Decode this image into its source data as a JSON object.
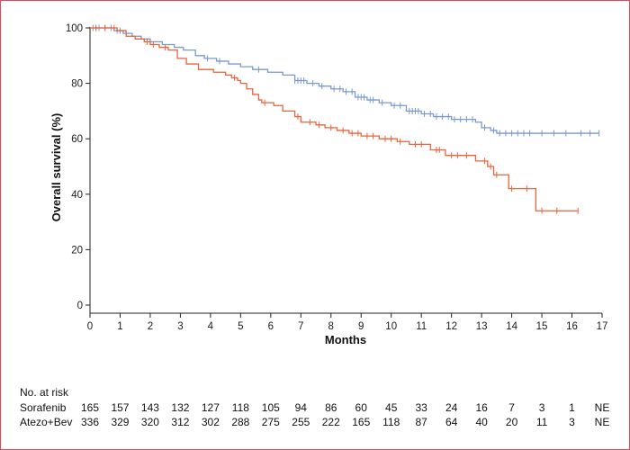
{
  "colors": {
    "sorafenib": "#7a98cf",
    "atezo": "#e8643a",
    "axis": "#222222",
    "frame": "#d94a5a"
  },
  "chart_data": {
    "type": "line",
    "chart_subtype": "kaplan-meier",
    "xlabel": "Months",
    "ylabel": "Overall survival (%)",
    "xlim": [
      0,
      17
    ],
    "ylim": [
      0,
      100
    ],
    "xticks": [
      0,
      1,
      2,
      3,
      4,
      5,
      6,
      7,
      8,
      9,
      10,
      11,
      12,
      13,
      14,
      15,
      16,
      17
    ],
    "yticks": [
      0,
      20,
      40,
      60,
      80,
      100
    ],
    "grid": false,
    "legend": "none",
    "series": [
      {
        "name": "Sorafenib",
        "color": "#7a98cf",
        "step": {
          "x": [
            0,
            0.8,
            1.1,
            1.4,
            1.7,
            2.0,
            2.4,
            2.8,
            3.1,
            3.5,
            3.8,
            4.2,
            4.6,
            5.0,
            5.4,
            5.9,
            6.4,
            6.8,
            7.2,
            7.6,
            8.0,
            8.4,
            8.8,
            9.2,
            9.6,
            10.0,
            10.5,
            11.0,
            11.4,
            12.0,
            12.8,
            13.0,
            13.3,
            13.5,
            16.9
          ],
          "y": [
            100,
            99,
            98,
            97,
            96,
            95,
            94,
            93,
            92,
            90,
            89,
            88,
            87,
            86,
            85,
            84,
            83,
            81,
            80,
            79,
            78,
            77,
            75,
            74,
            73,
            72,
            70,
            69,
            68,
            67,
            66,
            64,
            63,
            62,
            62
          ]
        },
        "censor_times": [
          0.1,
          0.2,
          0.3,
          0.5,
          0.7,
          0.9,
          1.0,
          3.9,
          4.3,
          5.6,
          6.8,
          6.9,
          7.0,
          7.1,
          7.4,
          7.7,
          8.1,
          8.3,
          8.5,
          8.7,
          8.9,
          9.0,
          9.1,
          9.3,
          9.4,
          9.7,
          10.1,
          10.3,
          10.6,
          10.7,
          10.8,
          10.9,
          11.1,
          11.3,
          11.5,
          11.7,
          11.9,
          12.1,
          12.3,
          12.5,
          12.7,
          13.1,
          13.4,
          13.6,
          13.8,
          14.0,
          14.2,
          14.4,
          14.6,
          15.0,
          15.4,
          15.8,
          16.3,
          16.6,
          16.9
        ]
      },
      {
        "name": "Atezo+Bev",
        "color": "#e8643a",
        "step": {
          "x": [
            0,
            0.9,
            1.2,
            1.5,
            1.8,
            2.0,
            2.3,
            2.6,
            2.9,
            3.2,
            3.6,
            4.1,
            4.5,
            4.7,
            4.9,
            5.0,
            5.2,
            5.4,
            5.6,
            5.7,
            6.1,
            6.4,
            6.8,
            7.0,
            7.5,
            7.8,
            8.2,
            8.6,
            9.0,
            9.6,
            10.2,
            10.6,
            11.3,
            11.8,
            12.8,
            13.2,
            13.4,
            13.9,
            14.8,
            16.2
          ],
          "y": [
            100,
            99,
            97,
            96,
            95,
            94,
            93,
            92,
            89,
            87,
            85,
            84,
            83,
            82,
            81,
            80,
            78,
            76,
            74,
            73,
            72,
            70,
            68,
            66,
            65,
            64,
            63,
            62,
            61,
            60,
            59,
            58,
            56,
            54,
            52,
            50,
            47,
            42,
            34,
            34
          ]
        },
        "censor_times": [
          0.2,
          0.5,
          0.8,
          1.9,
          2.1,
          2.5,
          4.8,
          5.8,
          6.9,
          7.3,
          7.6,
          8.0,
          8.4,
          8.7,
          8.9,
          9.2,
          9.4,
          9.8,
          10.0,
          10.3,
          10.8,
          11.0,
          11.5,
          11.6,
          12.0,
          12.2,
          12.5,
          13.1,
          13.3,
          13.5,
          14.0,
          14.5,
          15.0,
          15.5,
          16.2
        ]
      }
    ]
  },
  "risk_table": {
    "heading": "No. at risk",
    "times": [
      0,
      1,
      2,
      3,
      4,
      5,
      6,
      7,
      8,
      9,
      10,
      11,
      12,
      13,
      14,
      15,
      16,
      17
    ],
    "rows": [
      {
        "label": "Sorafenib",
        "counts": [
          "165",
          "157",
          "143",
          "132",
          "127",
          "118",
          "105",
          "94",
          "86",
          "60",
          "45",
          "33",
          "24",
          "16",
          "7",
          "3",
          "1",
          "NE"
        ]
      },
      {
        "label": "Atezo+Bev",
        "counts": [
          "336",
          "329",
          "320",
          "312",
          "302",
          "288",
          "275",
          "255",
          "222",
          "165",
          "118",
          "87",
          "64",
          "40",
          "20",
          "11",
          "3",
          "NE"
        ]
      }
    ]
  }
}
